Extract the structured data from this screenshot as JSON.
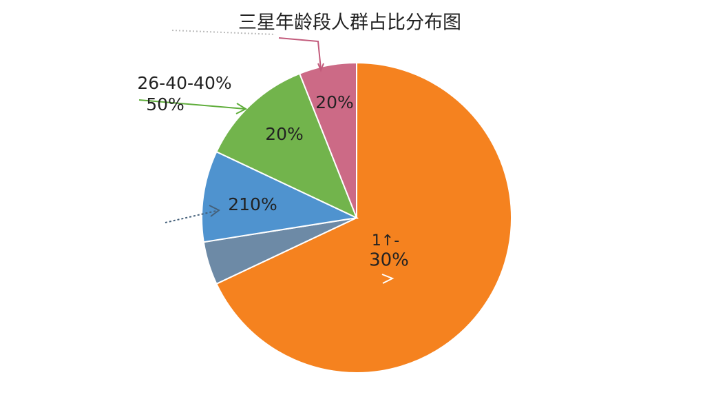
{
  "chart_data": {
    "type": "pie",
    "title": "三星年龄段人群占比分布图",
    "values": [
      68,
      4.5,
      9.5,
      12,
      6
    ],
    "colors": [
      "#f5821f",
      "#6d8aa6",
      "#4f93cf",
      "#72b44c",
      "#cc6a86"
    ],
    "annotations": [
      "1↑-",
      "30%",
      "210%",
      "20%",
      "20%",
      "26-40-40%",
      "50%"
    ]
  }
}
